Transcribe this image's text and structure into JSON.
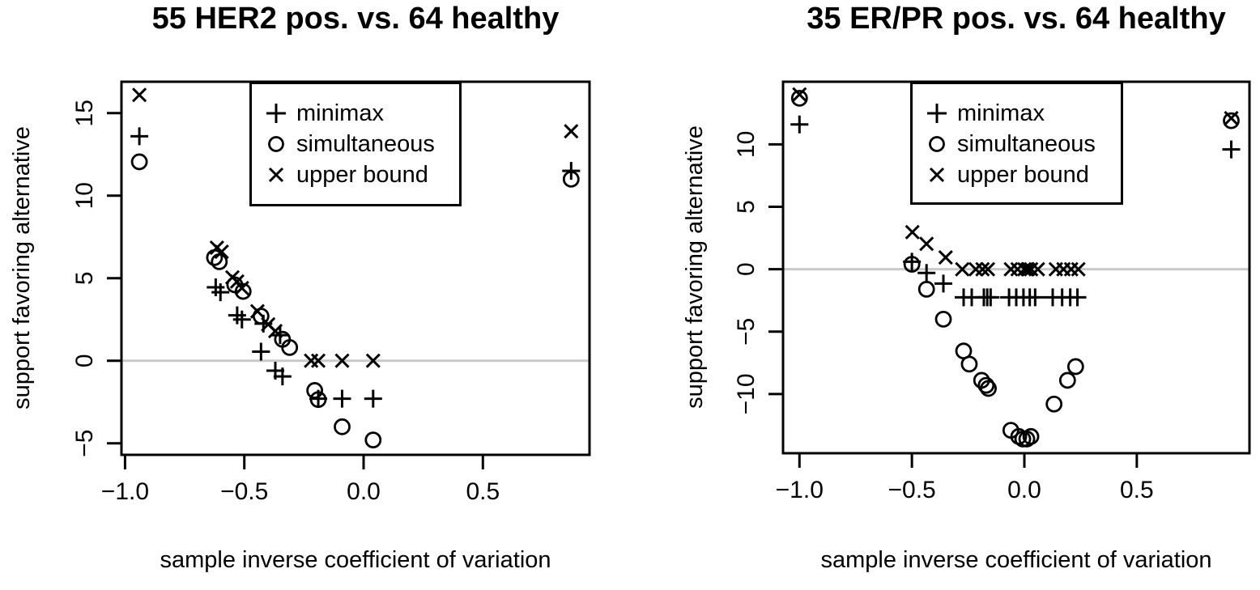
{
  "figure": {
    "background": "#ffffff",
    "marker_color": "#000000",
    "axis_color": "#000000",
    "zero_line_color": "#c9c9c9"
  },
  "legend": {
    "items": [
      {
        "symbol": "plus-icon",
        "label": "minimax"
      },
      {
        "symbol": "circle-icon",
        "label": "simultaneous"
      },
      {
        "symbol": "cross-icon",
        "label": "upper bound"
      }
    ]
  },
  "chart_data": [
    {
      "type": "scatter",
      "title": "55 HER2 pos. vs. 64 healthy",
      "xlabel": "sample inverse coefficient of variation",
      "ylabel": "support favoring alternative",
      "xlim": [
        -1.015,
        0.947
      ],
      "ylim": [
        -5.7,
        16.9
      ],
      "xticks": [
        -1.0,
        -0.5,
        0.0,
        0.5
      ],
      "xtick_labels": [
        "−1.0",
        "−0.5",
        "0.0",
        "0.5"
      ],
      "yticks": [
        -5,
        0,
        5,
        10,
        15
      ],
      "ytick_labels": [
        "−5",
        "0",
        "5",
        "10",
        "15"
      ],
      "hline": 0,
      "grid": false,
      "legend_position": "top-center",
      "series": [
        {
          "name": "minimax",
          "marker": "plus",
          "points": [
            [
              -0.94,
              13.6
            ],
            [
              -0.62,
              4.45
            ],
            [
              -0.6,
              4.15
            ],
            [
              -0.53,
              2.75
            ],
            [
              -0.51,
              2.5
            ],
            [
              -0.42,
              2.25
            ],
            [
              -0.35,
              1.55
            ],
            [
              -0.43,
              0.55
            ],
            [
              -0.37,
              -0.6
            ],
            [
              -0.34,
              -0.95
            ],
            [
              -0.19,
              -2.3
            ],
            [
              -0.09,
              -2.3
            ],
            [
              0.04,
              -2.3
            ],
            [
              0.87,
              11.5
            ]
          ]
        },
        {
          "name": "simultaneous",
          "marker": "circle",
          "points": [
            [
              -0.94,
              12.05
            ],
            [
              -0.625,
              6.25
            ],
            [
              -0.605,
              6.0
            ],
            [
              -0.54,
              4.6
            ],
            [
              -0.505,
              4.2
            ],
            [
              -0.43,
              2.7
            ],
            [
              -0.34,
              1.3
            ],
            [
              -0.31,
              0.8
            ],
            [
              -0.205,
              -1.8
            ],
            [
              -0.19,
              -2.35
            ],
            [
              -0.09,
              -4.0
            ],
            [
              0.04,
              -4.8
            ],
            [
              0.87,
              11.0
            ]
          ]
        },
        {
          "name": "upper bound",
          "marker": "cross",
          "points": [
            [
              -0.94,
              16.1
            ],
            [
              -0.615,
              6.85
            ],
            [
              -0.595,
              6.6
            ],
            [
              -0.55,
              5.05
            ],
            [
              -0.53,
              4.8
            ],
            [
              -0.51,
              4.4
            ],
            [
              -0.445,
              3.0
            ],
            [
              -0.4,
              2.2
            ],
            [
              -0.37,
              1.8
            ],
            [
              -0.22,
              0.0
            ],
            [
              -0.19,
              0.0
            ],
            [
              -0.09,
              0.0
            ],
            [
              0.04,
              0.0
            ],
            [
              0.87,
              13.9
            ]
          ]
        }
      ]
    },
    {
      "type": "scatter",
      "title": "35 ER/PR pos. vs. 64 healthy",
      "xlabel": "sample inverse coefficient of variation",
      "ylabel": "support favoring alternative",
      "xlim": [
        -1.073,
        1.001
      ],
      "ylim": [
        -14.74,
        15.02
      ],
      "xticks": [
        -1.0,
        -0.5,
        0.0,
        0.5
      ],
      "xtick_labels": [
        "−1.0",
        "−0.5",
        "0.0",
        "0.5"
      ],
      "yticks": [
        -10,
        -5,
        0,
        5,
        10
      ],
      "ytick_labels": [
        "−10",
        "−5",
        "0",
        "5",
        "10"
      ],
      "hline": 0,
      "grid": false,
      "legend_position": "top-center",
      "series": [
        {
          "name": "minimax",
          "marker": "plus",
          "points": [
            [
              -1.0,
              11.6
            ],
            [
              -0.5,
              0.6
            ],
            [
              -0.435,
              -0.3
            ],
            [
              -0.36,
              -1.15
            ],
            [
              -0.27,
              -2.25
            ],
            [
              -0.234,
              -2.25
            ],
            [
              -0.18,
              -2.25
            ],
            [
              -0.165,
              -2.25
            ],
            [
              -0.15,
              -2.25
            ],
            [
              -0.068,
              -2.25
            ],
            [
              -0.036,
              -2.25
            ],
            [
              -0.004,
              -2.25
            ],
            [
              0.024,
              -2.25
            ],
            [
              0.048,
              -2.25
            ],
            [
              0.126,
              -2.25
            ],
            [
              0.168,
              -2.25
            ],
            [
              0.204,
              -2.25
            ],
            [
              0.236,
              -2.25
            ],
            [
              0.92,
              9.6
            ]
          ]
        },
        {
          "name": "simultaneous",
          "marker": "circle",
          "points": [
            [
              -1.0,
              13.7
            ],
            [
              -0.5,
              0.4
            ],
            [
              -0.435,
              -1.6
            ],
            [
              -0.36,
              -4.0
            ],
            [
              -0.27,
              -6.55
            ],
            [
              -0.245,
              -7.6
            ],
            [
              -0.19,
              -8.9
            ],
            [
              -0.17,
              -9.3
            ],
            [
              -0.16,
              -9.55
            ],
            [
              -0.06,
              -12.9
            ],
            [
              -0.025,
              -13.4
            ],
            [
              -0.007,
              -13.6
            ],
            [
              0.011,
              -13.6
            ],
            [
              0.029,
              -13.4
            ],
            [
              0.132,
              -10.8
            ],
            [
              0.192,
              -8.9
            ],
            [
              0.228,
              -7.8
            ],
            [
              0.92,
              11.9
            ]
          ]
        },
        {
          "name": "upper bound",
          "marker": "cross",
          "points": [
            [
              -1.0,
              14.0
            ],
            [
              -0.498,
              2.97
            ],
            [
              -0.435,
              2.03
            ],
            [
              -0.35,
              0.95
            ],
            [
              -0.276,
              0
            ],
            [
              -0.216,
              0
            ],
            [
              -0.186,
              0
            ],
            [
              -0.162,
              0
            ],
            [
              -0.06,
              0
            ],
            [
              -0.03,
              0
            ],
            [
              0.0,
              0
            ],
            [
              0.015,
              0
            ],
            [
              0.03,
              0
            ],
            [
              0.06,
              0
            ],
            [
              0.14,
              0
            ],
            [
              0.174,
              0
            ],
            [
              0.208,
              0
            ],
            [
              0.24,
              0
            ],
            [
              0.92,
              12.1
            ]
          ]
        }
      ]
    }
  ]
}
